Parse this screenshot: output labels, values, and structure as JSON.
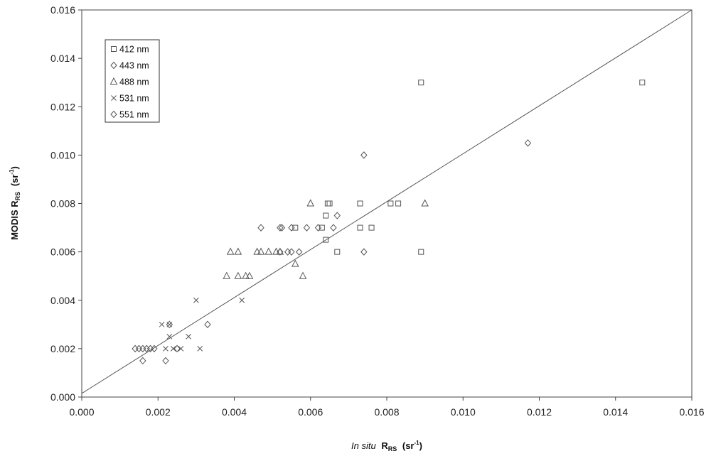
{
  "chart_data": {
    "type": "scatter",
    "xlabel": {
      "italic": "In situ",
      "main": "R",
      "sub": "RS",
      "unit": "(sr",
      "unit_sup": "-1",
      "unit_end": ")"
    },
    "ylabel": {
      "main": "MODIS R",
      "sub": "RS",
      "unit": "(sr",
      "unit_sup": "-1",
      "unit_end": ")"
    },
    "xlim": [
      0,
      0.016
    ],
    "ylim": [
      0,
      0.016
    ],
    "xticks": [
      "0.000",
      "0.002",
      "0.004",
      "0.006",
      "0.008",
      "0.010",
      "0.012",
      "0.014",
      "0.016"
    ],
    "yticks": [
      "0.000",
      "0.002",
      "0.004",
      "0.006",
      "0.008",
      "0.010",
      "0.012",
      "0.014",
      "0.016"
    ],
    "grid": false,
    "legend_position": "top-left",
    "fit_line": {
      "x": [
        0,
        0.016
      ],
      "y": [
        0.00015,
        0.016
      ]
    },
    "series": [
      {
        "name": "412 nm",
        "marker": "square",
        "points": [
          [
            0.0056,
            0.007
          ],
          [
            0.0063,
            0.007
          ],
          [
            0.0064,
            0.0075
          ],
          [
            0.0064,
            0.0065
          ],
          [
            0.00645,
            0.008
          ],
          [
            0.0065,
            0.008
          ],
          [
            0.0067,
            0.006
          ],
          [
            0.0073,
            0.008
          ],
          [
            0.0073,
            0.007
          ],
          [
            0.0076,
            0.007
          ],
          [
            0.0081,
            0.008
          ],
          [
            0.0083,
            0.008
          ],
          [
            0.0089,
            0.006
          ],
          [
            0.0089,
            0.013
          ],
          [
            0.0147,
            0.013
          ]
        ]
      },
      {
        "name": "443 nm",
        "marker": "diamond",
        "points": [
          [
            0.0047,
            0.007
          ],
          [
            0.0052,
            0.007
          ],
          [
            0.00525,
            0.007
          ],
          [
            0.0055,
            0.007
          ],
          [
            0.0059,
            0.007
          ],
          [
            0.0062,
            0.007
          ],
          [
            0.0066,
            0.007
          ],
          [
            0.0074,
            0.006
          ],
          [
            0.0074,
            0.01
          ],
          [
            0.0117,
            0.0105
          ]
        ]
      },
      {
        "name": "488 nm",
        "marker": "triangle",
        "points": [
          [
            0.0038,
            0.005
          ],
          [
            0.0039,
            0.006
          ],
          [
            0.0041,
            0.006
          ],
          [
            0.0041,
            0.005
          ],
          [
            0.0043,
            0.005
          ],
          [
            0.0044,
            0.005
          ],
          [
            0.0046,
            0.006
          ],
          [
            0.0047,
            0.006
          ],
          [
            0.0049,
            0.006
          ],
          [
            0.0051,
            0.006
          ],
          [
            0.0052,
            0.006
          ],
          [
            0.0056,
            0.0055
          ],
          [
            0.0058,
            0.005
          ],
          [
            0.006,
            0.008
          ],
          [
            0.009,
            0.008
          ]
        ]
      },
      {
        "name": "531 nm",
        "marker": "x",
        "points": [
          [
            0.0021,
            0.003
          ],
          [
            0.0022,
            0.002
          ],
          [
            0.0023,
            0.0025
          ],
          [
            0.0023,
            0.003
          ],
          [
            0.0024,
            0.002
          ],
          [
            0.0026,
            0.002
          ],
          [
            0.0028,
            0.0025
          ],
          [
            0.003,
            0.004
          ],
          [
            0.0031,
            0.002
          ],
          [
            0.0042,
            0.004
          ]
        ]
      },
      {
        "name": "551 nm",
        "marker": "diamond",
        "points": [
          [
            0.0014,
            0.002
          ],
          [
            0.0015,
            0.002
          ],
          [
            0.0016,
            0.0015
          ],
          [
            0.0016,
            0.002
          ],
          [
            0.0017,
            0.002
          ],
          [
            0.0018,
            0.002
          ],
          [
            0.0019,
            0.002
          ],
          [
            0.0022,
            0.0015
          ],
          [
            0.0023,
            0.003
          ],
          [
            0.0025,
            0.002
          ],
          [
            0.0033,
            0.003
          ],
          [
            0.0052,
            0.006
          ],
          [
            0.0054,
            0.006
          ],
          [
            0.0055,
            0.006
          ],
          [
            0.0057,
            0.006
          ],
          [
            0.0067,
            0.0075
          ]
        ]
      }
    ]
  }
}
